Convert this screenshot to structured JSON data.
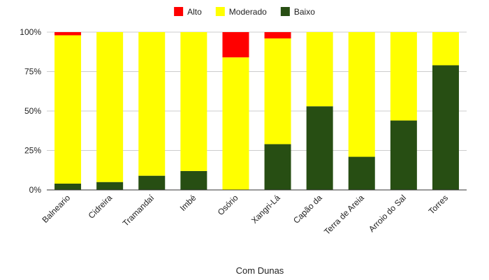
{
  "chart_data": {
    "type": "bar",
    "stacked": true,
    "normalized": true,
    "xlabel": "Com Dunas",
    "ylabel": "",
    "ylim": [
      0,
      100
    ],
    "yticks": [
      "0%",
      "25%",
      "50%",
      "75%",
      "100%"
    ],
    "legend_position": "top",
    "categories": [
      "Balneario",
      "Cidreira",
      "Tramandaí",
      "Imbé",
      "Osório",
      "Xangri-Lá",
      "Capão da",
      "Terra de Areia",
      "Arroio do Sal",
      "Torres"
    ],
    "series": [
      {
        "name": "Alto",
        "color": "#ff0000",
        "values": [
          2,
          0,
          0,
          0,
          16,
          4,
          0,
          0,
          0,
          0
        ]
      },
      {
        "name": "Moderado",
        "color": "#ffff00",
        "values": [
          94,
          95,
          91,
          88,
          84,
          67,
          47,
          79,
          56,
          21
        ]
      },
      {
        "name": "Baixo",
        "color": "#274e13",
        "values": [
          4,
          5,
          9,
          12,
          0,
          29,
          53,
          21,
          44,
          79
        ]
      }
    ]
  }
}
